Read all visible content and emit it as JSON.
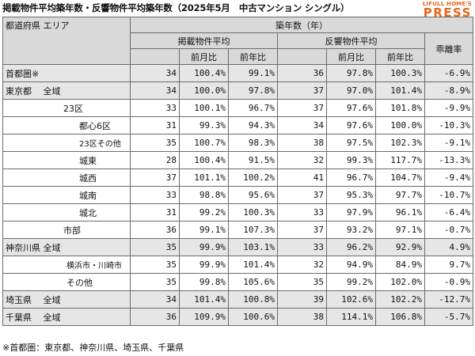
{
  "title": "掲載物件平均築年数・反響物件平均築年数（2025年5月　中古マンション シングル）",
  "logo": {
    "small": "LIFULL HOME'S",
    "big": "PRESS"
  },
  "header": {
    "region": "都道府県 エリア",
    "age_group": "築年数（年）",
    "listed": "掲載物件平均",
    "response": "反響物件平均",
    "diff": "乖離率",
    "mom": "前月比",
    "yoy": "前年比"
  },
  "rows": [
    {
      "name": "首都圏※",
      "listed": "34",
      "l_mom": "100.4%",
      "l_yoy": "99.1%",
      "resp": "36",
      "r_mom": "97.8%",
      "r_yoy": "100.3%",
      "diff": "-6.9%"
    },
    {
      "name": "東京都　 全域",
      "listed": "34",
      "l_mom": "100.0%",
      "l_yoy": "97.8%",
      "resp": "37",
      "r_mom": "97.0%",
      "r_yoy": "101.4%",
      "diff": "-8.9%"
    },
    {
      "name": "23区",
      "listed": "33",
      "l_mom": "100.1%",
      "l_yoy": "96.7%",
      "resp": "37",
      "r_mom": "97.6%",
      "r_yoy": "101.8%",
      "diff": "-9.9%"
    },
    {
      "name": "都心6区",
      "listed": "31",
      "l_mom": "99.3%",
      "l_yoy": "94.3%",
      "resp": "34",
      "r_mom": "97.6%",
      "r_yoy": "100.0%",
      "diff": "-10.3%"
    },
    {
      "name": "23区その他",
      "listed": "35",
      "l_mom": "100.7%",
      "l_yoy": "98.3%",
      "resp": "38",
      "r_mom": "97.5%",
      "r_yoy": "102.3%",
      "diff": "-9.1%"
    },
    {
      "name": "城東",
      "listed": "28",
      "l_mom": "100.4%",
      "l_yoy": "91.5%",
      "resp": "32",
      "r_mom": "99.3%",
      "r_yoy": "117.7%",
      "diff": "-13.3%"
    },
    {
      "name": "城西",
      "listed": "37",
      "l_mom": "101.1%",
      "l_yoy": "100.2%",
      "resp": "41",
      "r_mom": "96.7%",
      "r_yoy": "104.7%",
      "diff": "-9.4%"
    },
    {
      "name": "城南",
      "listed": "33",
      "l_mom": "98.8%",
      "l_yoy": "95.6%",
      "resp": "37",
      "r_mom": "95.3%",
      "r_yoy": "97.7%",
      "diff": "-10.7%"
    },
    {
      "name": "城北",
      "listed": "31",
      "l_mom": "99.2%",
      "l_yoy": "100.3%",
      "resp": "33",
      "r_mom": "97.9%",
      "r_yoy": "96.1%",
      "diff": "-6.4%"
    },
    {
      "name": "市部",
      "listed": "36",
      "l_mom": "99.1%",
      "l_yoy": "107.3%",
      "resp": "37",
      "r_mom": "93.2%",
      "r_yoy": "97.1%",
      "diff": "-0.7%"
    },
    {
      "name": "神奈川県 全域",
      "listed": "35",
      "l_mom": "99.9%",
      "l_yoy": "103.1%",
      "resp": "33",
      "r_mom": "96.2%",
      "r_yoy": "92.9%",
      "diff": "4.9%"
    },
    {
      "name": "横浜市・川崎市",
      "listed": "35",
      "l_mom": "99.9%",
      "l_yoy": "101.4%",
      "resp": "32",
      "r_mom": "94.9%",
      "r_yoy": "84.9%",
      "diff": "9.7%"
    },
    {
      "name": "その他",
      "listed": "35",
      "l_mom": "99.8%",
      "l_yoy": "105.6%",
      "resp": "35",
      "r_mom": "99.2%",
      "r_yoy": "102.0%",
      "diff": "-0.9%"
    },
    {
      "name": "埼玉県　 全域",
      "listed": "34",
      "l_mom": "101.4%",
      "l_yoy": "100.8%",
      "resp": "39",
      "r_mom": "102.6%",
      "r_yoy": "102.2%",
      "diff": "-12.7%"
    },
    {
      "name": "千葉県　 全域",
      "listed": "36",
      "l_mom": "109.9%",
      "l_yoy": "100.6%",
      "resp": "38",
      "r_mom": "114.1%",
      "r_yoy": "106.8%",
      "diff": "-5.7%"
    }
  ],
  "note": "※首都圏：東京都、神奈川県、埼玉県、千葉県"
}
